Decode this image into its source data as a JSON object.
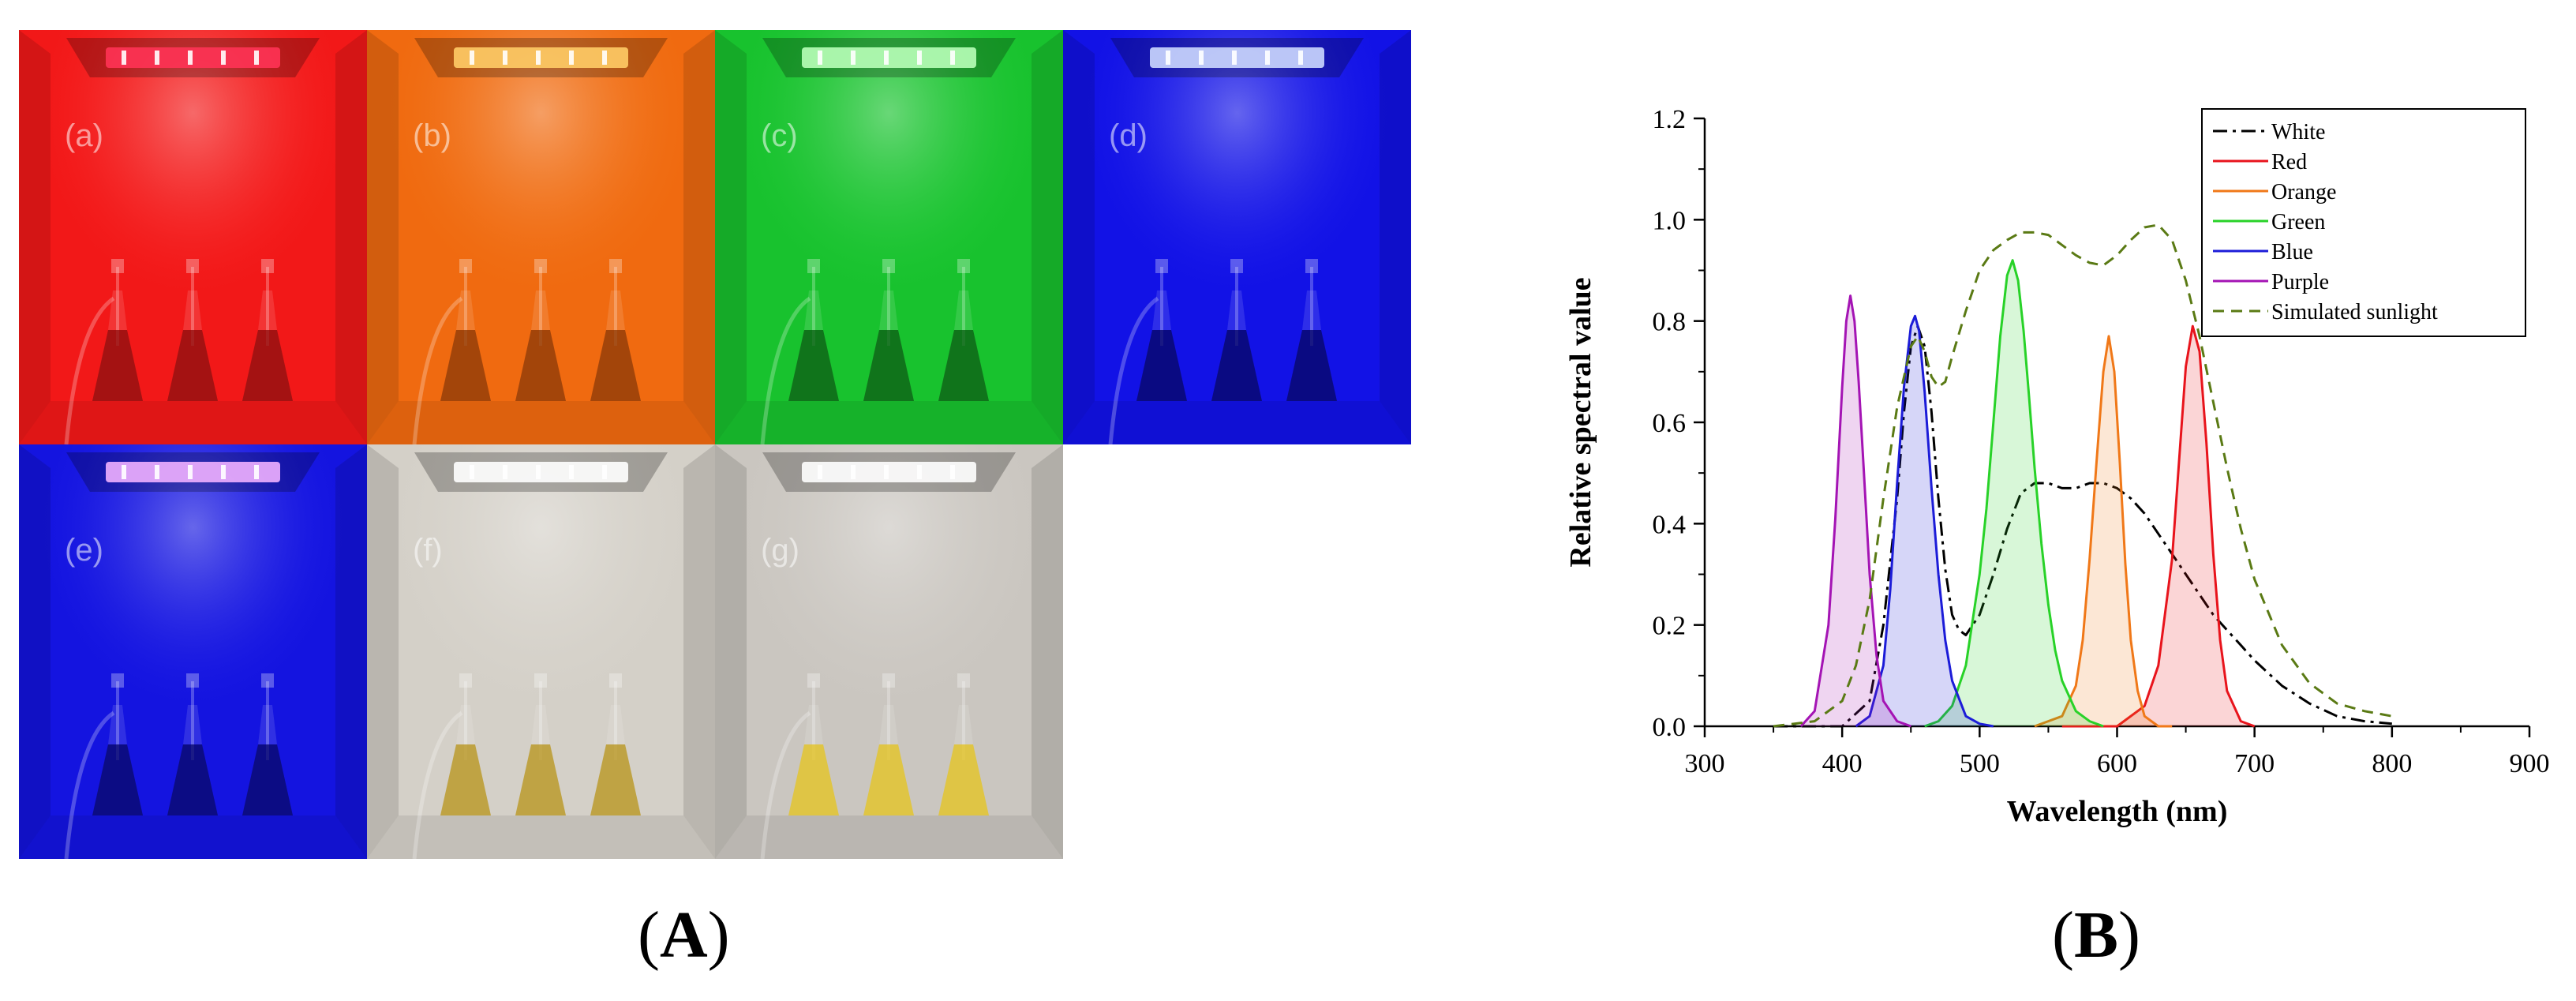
{
  "panel_a": {
    "caption_letter": "A",
    "photos": [
      {
        "label": "(a)",
        "light": "#f21818",
        "wall": "#ff2a2a",
        "lamp": "#ff3355",
        "liquid": "#8a1010"
      },
      {
        "label": "(b)",
        "light": "#f06a10",
        "wall": "#f2780f",
        "lamp": "#ffcc66",
        "liquid": "#8a3a08"
      },
      {
        "label": "(c)",
        "light": "#18c22e",
        "wall": "#1ed034",
        "lamp": "#b8ffb8",
        "liquid": "#0d5a16"
      },
      {
        "label": "(d)",
        "light": "#1212e6",
        "wall": "#1818f0",
        "lamp": "#ccd8ff",
        "liquid": "#080860"
      },
      {
        "label": "(e)",
        "light": "#1414e0",
        "wall": "#1a1aee",
        "lamp": "#f0b0ff",
        "liquid": "#0a0a66"
      },
      {
        "label": "(f)",
        "light": "#d4d0c8",
        "wall": "#dedad2",
        "lamp": "#ffffff",
        "liquid": "#b89418"
      },
      {
        "label": "(g)",
        "light": "#cac6c0",
        "wall": "#d6d2cc",
        "lamp": "#ffffff",
        "liquid": "#e6c41c"
      }
    ]
  },
  "panel_b": {
    "caption_letter": "B"
  },
  "chart_data": {
    "type": "line",
    "title": "",
    "xlabel": "Wavelength (nm)",
    "ylabel": "Relative spectral value",
    "xlim": [
      300,
      900
    ],
    "ylim": [
      0.0,
      1.2
    ],
    "xticks": [
      300,
      400,
      500,
      600,
      700,
      800,
      900
    ],
    "yticks": [
      0.0,
      0.2,
      0.4,
      0.6,
      0.8,
      1.0,
      1.2
    ],
    "xtick_labels": [
      "300",
      "400",
      "500",
      "600",
      "700",
      "800",
      "900"
    ],
    "ytick_labels": [
      "0.0",
      "0.2",
      "0.4",
      "0.6",
      "0.8",
      "1.0",
      "1.2"
    ],
    "grid": false,
    "legend_position": "top-right",
    "series": [
      {
        "name": "White",
        "color": "#000000",
        "dash": "dashdot",
        "x": [
          350,
          400,
          420,
          430,
          440,
          445,
          450,
          455,
          460,
          465,
          470,
          475,
          480,
          485,
          490,
          500,
          510,
          520,
          530,
          540,
          550,
          560,
          570,
          580,
          590,
          600,
          610,
          620,
          630,
          640,
          650,
          660,
          670,
          680,
          690,
          700,
          720,
          740,
          760,
          780,
          800
        ],
        "y": [
          0.0,
          0.0,
          0.05,
          0.2,
          0.45,
          0.62,
          0.75,
          0.79,
          0.75,
          0.62,
          0.45,
          0.31,
          0.22,
          0.19,
          0.18,
          0.22,
          0.3,
          0.39,
          0.46,
          0.48,
          0.48,
          0.47,
          0.47,
          0.48,
          0.48,
          0.47,
          0.45,
          0.42,
          0.38,
          0.34,
          0.3,
          0.26,
          0.22,
          0.19,
          0.16,
          0.13,
          0.08,
          0.045,
          0.02,
          0.01,
          0.005
        ]
      },
      {
        "name": "Red",
        "color": "#e8141c",
        "dash": "solid",
        "x": [
          560,
          600,
          620,
          630,
          640,
          645,
          650,
          655,
          660,
          665,
          670,
          675,
          680,
          690,
          700
        ],
        "y": [
          0.0,
          0.0,
          0.04,
          0.12,
          0.33,
          0.52,
          0.71,
          0.79,
          0.74,
          0.56,
          0.34,
          0.17,
          0.07,
          0.01,
          0.0
        ],
        "fill_opacity": 0.18
      },
      {
        "name": "Orange",
        "color": "#f07818",
        "dash": "solid",
        "x": [
          540,
          560,
          570,
          575,
          580,
          585,
          590,
          594,
          598,
          602,
          606,
          610,
          615,
          620,
          630,
          640
        ],
        "y": [
          0.0,
          0.02,
          0.08,
          0.17,
          0.33,
          0.52,
          0.7,
          0.77,
          0.7,
          0.52,
          0.32,
          0.17,
          0.07,
          0.02,
          0.0,
          0.0
        ],
        "fill_opacity": 0.18
      },
      {
        "name": "Green",
        "color": "#28d228",
        "dash": "solid",
        "x": [
          460,
          470,
          480,
          490,
          500,
          505,
          510,
          515,
          520,
          524,
          528,
          532,
          536,
          540,
          545,
          550,
          555,
          560,
          570,
          580,
          590
        ],
        "y": [
          0.0,
          0.01,
          0.04,
          0.12,
          0.3,
          0.43,
          0.6,
          0.77,
          0.89,
          0.92,
          0.88,
          0.78,
          0.65,
          0.51,
          0.36,
          0.24,
          0.15,
          0.09,
          0.03,
          0.01,
          0.0
        ],
        "fill_opacity": 0.18
      },
      {
        "name": "Blue",
        "color": "#1c1cd8",
        "dash": "solid",
        "x": [
          410,
          420,
          430,
          435,
          440,
          445,
          450,
          453,
          456,
          460,
          465,
          470,
          475,
          480,
          490,
          500,
          510
        ],
        "y": [
          0.0,
          0.02,
          0.12,
          0.27,
          0.48,
          0.67,
          0.79,
          0.81,
          0.78,
          0.66,
          0.47,
          0.3,
          0.17,
          0.09,
          0.02,
          0.005,
          0.0
        ],
        "fill_opacity": 0.18
      },
      {
        "name": "Purple",
        "color": "#a414b4",
        "dash": "solid",
        "x": [
          370,
          380,
          390,
          395,
          400,
          403,
          406,
          409,
          412,
          415,
          420,
          425,
          430,
          440,
          450
        ],
        "y": [
          0.0,
          0.03,
          0.2,
          0.41,
          0.67,
          0.8,
          0.85,
          0.8,
          0.68,
          0.54,
          0.3,
          0.14,
          0.05,
          0.01,
          0.0
        ],
        "fill_opacity": 0.18
      },
      {
        "name": "Simulated sunlight",
        "color": "#5a7a14",
        "dash": "dashed",
        "x": [
          350,
          380,
          400,
          410,
          420,
          430,
          440,
          450,
          455,
          460,
          465,
          470,
          475,
          480,
          490,
          500,
          510,
          520,
          530,
          540,
          550,
          560,
          570,
          580,
          590,
          600,
          610,
          620,
          630,
          640,
          650,
          660,
          670,
          680,
          690,
          700,
          720,
          740,
          760,
          780,
          800
        ],
        "y": [
          0.0,
          0.01,
          0.05,
          0.12,
          0.25,
          0.45,
          0.63,
          0.75,
          0.77,
          0.74,
          0.69,
          0.67,
          0.68,
          0.73,
          0.82,
          0.9,
          0.94,
          0.96,
          0.975,
          0.975,
          0.97,
          0.95,
          0.93,
          0.915,
          0.91,
          0.93,
          0.96,
          0.985,
          0.99,
          0.96,
          0.88,
          0.77,
          0.64,
          0.51,
          0.39,
          0.29,
          0.16,
          0.085,
          0.045,
          0.03,
          0.02
        ]
      }
    ]
  }
}
